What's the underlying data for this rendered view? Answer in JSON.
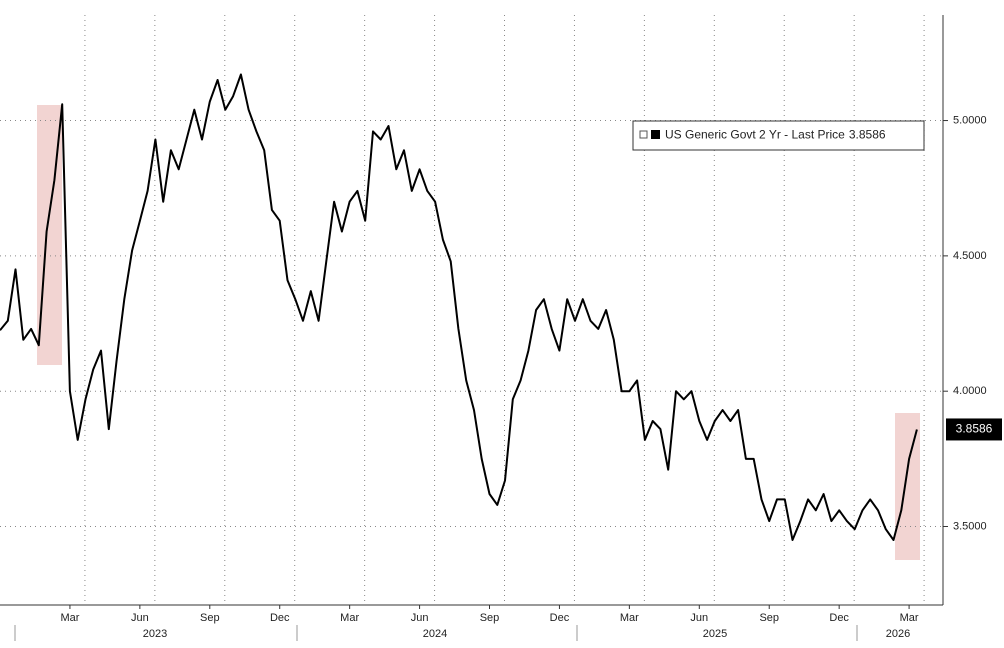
{
  "chart_data": {
    "type": "line",
    "categories": [
      null,
      null,
      null,
      null,
      null,
      null,
      null,
      null,
      null,
      "Mar",
      null,
      null,
      null,
      null,
      null,
      null,
      null,
      null,
      "Jun",
      null,
      null,
      null,
      null,
      null,
      null,
      null,
      null,
      "Sep",
      null,
      null,
      null,
      null,
      null,
      null,
      null,
      null,
      "Dec",
      null,
      null,
      null,
      null,
      null,
      null,
      null,
      null,
      "Mar",
      null,
      null,
      null,
      null,
      null,
      null,
      null,
      null,
      "Jun",
      null,
      null,
      null,
      null,
      null,
      null,
      null,
      null,
      "Sep",
      null,
      null,
      null,
      null,
      null,
      null,
      null,
      null,
      "Dec",
      null,
      null,
      null,
      null,
      null,
      null,
      null,
      null,
      "Mar",
      null,
      null,
      null,
      null,
      null,
      null,
      null,
      null,
      "Jun",
      null,
      null,
      null,
      null,
      null,
      null,
      null,
      null,
      "Sep",
      null,
      null,
      null,
      null,
      null,
      null,
      null,
      null,
      "Dec",
      null,
      null,
      null,
      null,
      null,
      null,
      null,
      null,
      "Mar",
      null
    ],
    "x_year_labels": [
      "2023",
      "2024",
      "2025",
      "2026"
    ],
    "series": [
      {
        "name": "US Generic Govt 2 Yr - Last Price",
        "color": "#000000",
        "values": [
          4.225,
          4.26,
          4.45,
          4.19,
          4.23,
          4.17,
          4.59,
          4.78,
          5.06,
          4.0,
          3.82,
          3.97,
          4.08,
          4.15,
          3.86,
          4.11,
          4.34,
          4.52,
          4.63,
          4.74,
          4.93,
          4.7,
          4.89,
          4.82,
          4.93,
          5.04,
          4.93,
          5.07,
          5.15,
          5.04,
          5.09,
          5.17,
          5.04,
          4.96,
          4.89,
          4.67,
          4.63,
          4.41,
          4.34,
          4.26,
          4.37,
          4.26,
          4.48,
          4.7,
          4.59,
          4.7,
          4.74,
          4.63,
          4.96,
          4.93,
          4.98,
          4.82,
          4.89,
          4.74,
          4.82,
          4.74,
          4.7,
          4.56,
          4.48,
          4.23,
          4.04,
          3.93,
          3.75,
          3.62,
          3.58,
          3.67,
          3.97,
          4.04,
          4.15,
          4.3,
          4.34,
          4.23,
          4.15,
          4.34,
          4.26,
          4.34,
          4.26,
          4.23,
          4.3,
          4.19,
          4.0,
          4.0,
          4.04,
          3.82,
          3.89,
          3.86,
          3.71,
          4.0,
          3.97,
          4.0,
          3.89,
          3.82,
          3.89,
          3.93,
          3.89,
          3.93,
          3.75,
          3.75,
          3.6,
          3.52,
          3.6,
          3.6,
          3.45,
          3.52,
          3.6,
          3.56,
          3.62,
          3.52,
          3.56,
          3.52,
          3.49,
          3.56,
          3.6,
          3.56,
          3.49,
          3.45,
          3.56,
          3.75,
          3.8586
        ]
      }
    ],
    "ylim": [
      3.21,
      5.39
    ],
    "yticks": [
      {
        "value": 3.5,
        "label": "3.5000"
      },
      {
        "value": 4.0,
        "label": "4.0000"
      },
      {
        "value": 4.5,
        "label": "4.5000"
      },
      {
        "value": 5.0,
        "label": "5.0000"
      }
    ],
    "grid": true,
    "legend": "upper right"
  }
}
